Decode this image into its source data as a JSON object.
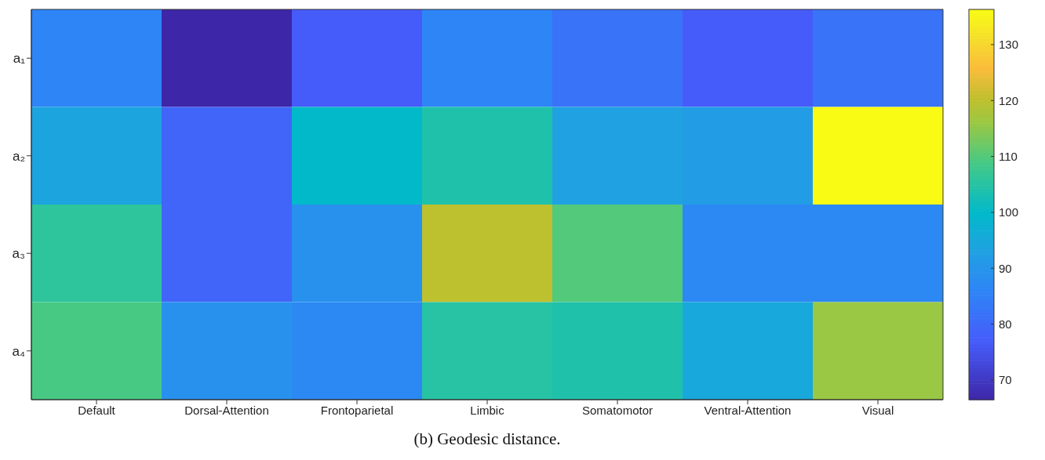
{
  "chart_data": {
    "type": "heatmap",
    "title": "(b) Geodesic distance.",
    "categories": [
      "Default",
      "Dorsal-Attention",
      "Frontoparietal",
      "Limbic",
      "Somatomotor",
      "Ventral-Attention",
      "Visual"
    ],
    "y_categories": [
      "a₁",
      "a₂",
      "a₃",
      "a₄"
    ],
    "cells": [
      [
        86,
        66.5,
        77,
        86,
        82,
        77,
        82
      ],
      [
        94,
        79,
        100,
        104,
        93,
        92,
        136.3
      ],
      [
        106,
        79,
        89,
        120,
        110,
        87,
        87
      ],
      [
        109,
        89,
        87,
        105,
        104,
        95,
        116
      ]
    ],
    "clim": [
      66.5,
      136.3
    ],
    "cticks": [
      70,
      80,
      90,
      100,
      110,
      120,
      130
    ]
  }
}
